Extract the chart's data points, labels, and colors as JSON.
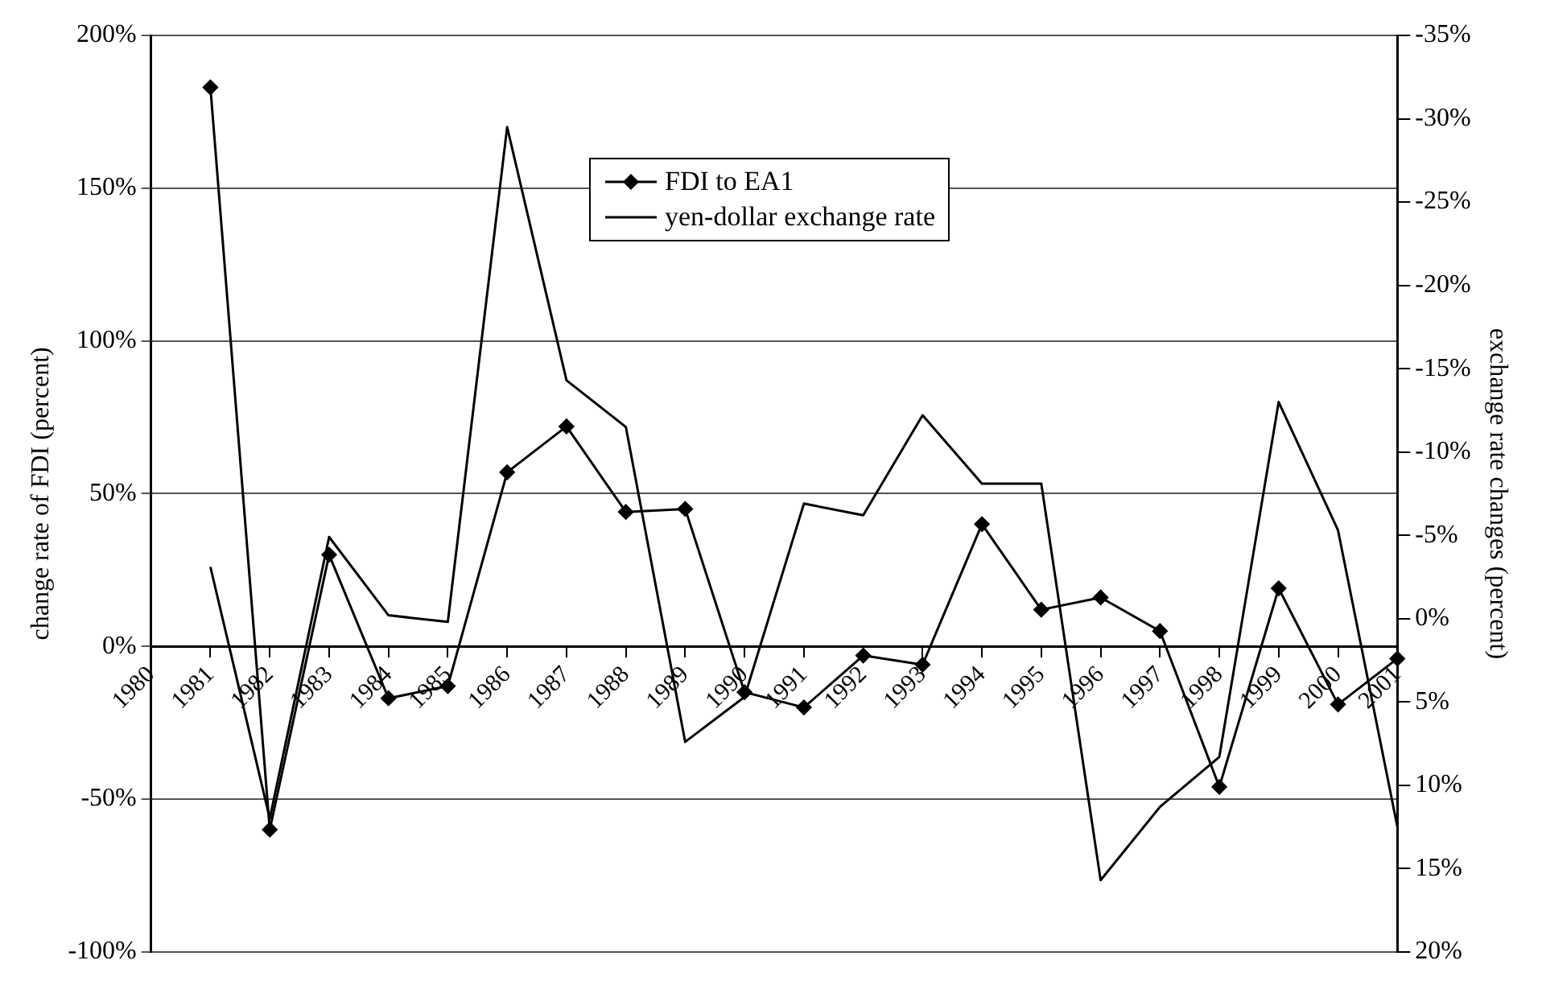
{
  "chart_data": {
    "type": "line",
    "ylabel": "change rate of FDI (percent)",
    "y2label": "exchange rate changes (percent)",
    "categories": [
      "1980",
      "1981",
      "1982",
      "1983",
      "1984",
      "1985",
      "1986",
      "1987",
      "1988",
      "1989",
      "1990",
      "1991",
      "1992",
      "1993",
      "1994",
      "1995",
      "1996",
      "1997",
      "1998",
      "1999",
      "2000",
      "2001"
    ],
    "series": [
      {
        "name": "FDI to EA1",
        "color": "#000000",
        "marker": "diamond",
        "values": [
          null,
          183,
          -60,
          30,
          -17,
          -13,
          57,
          72,
          44,
          45,
          -15,
          -20,
          -3,
          -6,
          40,
          12,
          16,
          5,
          -46,
          19,
          -19,
          -4
        ]
      },
      {
        "name": "yen-dollar exchange rate",
        "color": "#000000",
        "marker": "none",
        "axis": "y2",
        "values": [
          null,
          -3.1,
          12,
          -4.9,
          -0.2,
          0.2,
          -29.5,
          -14.3,
          -11.5,
          7.4,
          4.7,
          -6.9,
          -6.2,
          -12.2,
          -8.1,
          -8.1,
          15.7,
          11.3,
          8.3,
          -13,
          -5.3,
          12.5
        ]
      }
    ],
    "ylim": [
      -100,
      200
    ],
    "yticks": [
      {
        "value": -100,
        "label": "-100%"
      },
      {
        "value": -50,
        "label": "-50%"
      },
      {
        "value": 0,
        "label": "0%"
      },
      {
        "value": 50,
        "label": "50%"
      },
      {
        "value": 100,
        "label": "100%"
      },
      {
        "value": 150,
        "label": "150%"
      },
      {
        "value": 200,
        "label": "200%"
      }
    ],
    "y2lim": [
      20,
      -35
    ],
    "y2ticks": [
      {
        "value": 20,
        "label": "20%"
      },
      {
        "value": 15,
        "label": "15%"
      },
      {
        "value": 10,
        "label": "10%"
      },
      {
        "value": 5,
        "label": "5%"
      },
      {
        "value": 0,
        "label": "0%"
      },
      {
        "value": -5,
        "label": "-5%"
      },
      {
        "value": -10,
        "label": "-10%"
      },
      {
        "value": -15,
        "label": "-15%"
      },
      {
        "value": -20,
        "label": "-20%"
      },
      {
        "value": -25,
        "label": "-25%"
      },
      {
        "value": -30,
        "label": "-30%"
      },
      {
        "value": -35,
        "label": "-35%"
      }
    ],
    "grid": "y",
    "legend": "top",
    "line_style": "solid"
  }
}
